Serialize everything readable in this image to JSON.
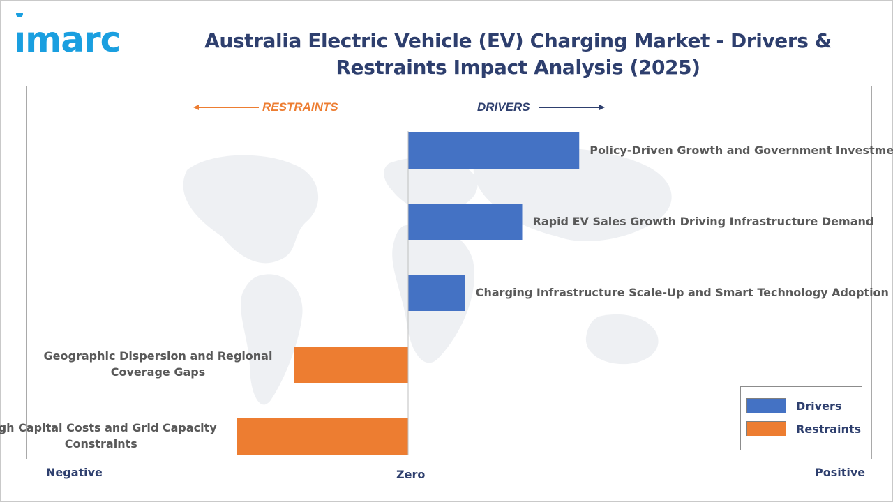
{
  "brand": {
    "logo_text": "imarc"
  },
  "title": "Australia Electric Vehicle (EV) Charging Market - Drivers & Restraints Impact Analysis (2025)",
  "direction_labels": {
    "restraints": "RESTRAINTS",
    "drivers": "DRIVERS"
  },
  "axis_words": {
    "negative": "Negative",
    "zero": "Zero",
    "positive": "Positive"
  },
  "legend": {
    "drivers": "Drivers",
    "restraints": "Restraints"
  },
  "colors": {
    "drivers": "#4472c4",
    "restraints": "#ed7d31",
    "title": "#2e3f6e",
    "label": "#595959"
  },
  "chart_data": {
    "type": "bar",
    "orientation": "horizontal",
    "title": "Australia Electric Vehicle (EV) Charging Market - Drivers & Restraints Impact Analysis (2025)",
    "xlabel": "",
    "ylabel": "",
    "xlim": [
      -3,
      3
    ],
    "grid": false,
    "legend_position": "bottom-right",
    "categories": [
      "Policy-Driven Growth and Government Investment",
      "Rapid EV Sales Growth Driving Infrastructure Demand",
      "Charging Infrastructure Scale-Up and Smart Technology Adoption",
      "Geographic Dispersion and Regional Coverage Gaps",
      "High Capital Costs and Grid Capacity Constraints"
    ],
    "series": [
      {
        "name": "Drivers",
        "values": [
          1.5,
          1.0,
          0.5,
          null,
          null
        ]
      },
      {
        "name": "Restraints",
        "values": [
          null,
          null,
          null,
          -1.0,
          -1.5
        ]
      }
    ]
  }
}
